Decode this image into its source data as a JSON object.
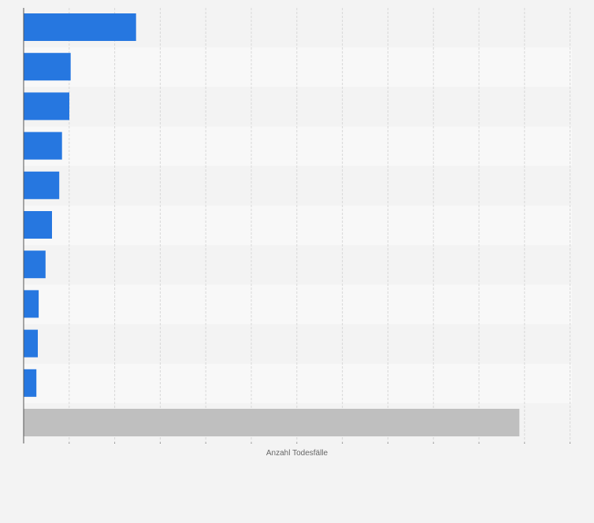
{
  "chart_data": {
    "type": "bar",
    "orientation": "horizontal",
    "title": "",
    "xlabel": "Anzahl Todesfälle",
    "ylabel": "",
    "categories": [
      "",
      "",
      "",
      "",
      "",
      "",
      "",
      "",
      "",
      "",
      ""
    ],
    "values": [
      246,
      103,
      100,
      84,
      78,
      62,
      48,
      33,
      31,
      28,
      1085
    ],
    "xlim": [
      0,
      1200
    ],
    "grid": true,
    "colors": {
      "bar": "#2677e0",
      "highlight_bar": "#bfbfbf",
      "band_dark": "#f3f3f3",
      "band_light": "#f8f8f8",
      "grid": "#d8d8d8",
      "axis": "#555555",
      "label": "#666666"
    }
  }
}
